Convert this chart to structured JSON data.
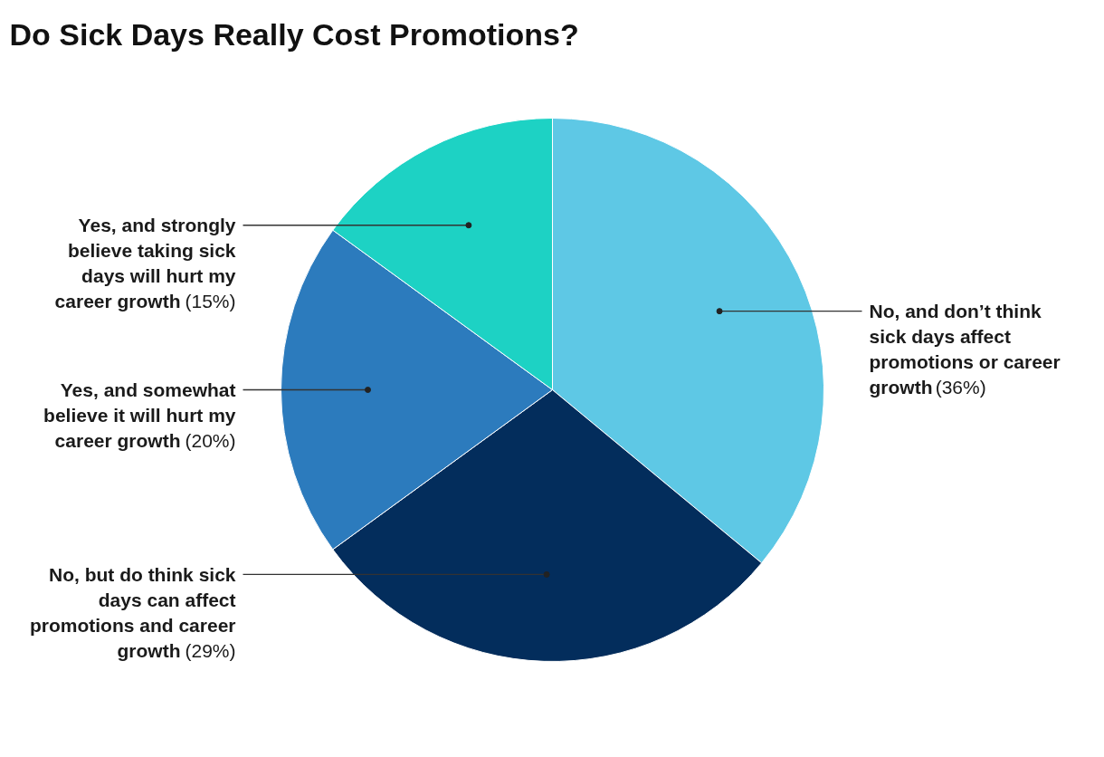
{
  "chart_data": {
    "type": "pie",
    "title": "Do Sick Days Really Cost Promotions?",
    "categories": [
      "No, and don’t think sick days affect promotions or career growth",
      "No, but do think sick days can affect promotions and career growth",
      "Yes, and somewhat believe it will hurt my career growth",
      "Yes, and strongly believe taking sick days will hurt my career growth"
    ],
    "values": [
      36,
      29,
      20,
      15
    ],
    "colors": [
      "#5ec8e5",
      "#032d5c",
      "#2c7bbd",
      "#1dd2c4"
    ],
    "value_labels": [
      "(36%)",
      "(29%)",
      "(20%)",
      "(15%)"
    ]
  }
}
